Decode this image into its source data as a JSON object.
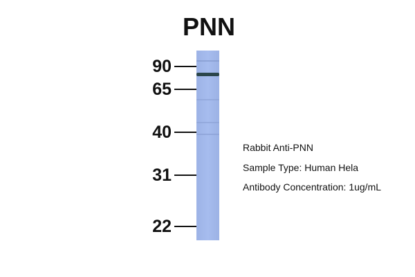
{
  "title": "PNN",
  "markers": [
    {
      "label": "90"
    },
    {
      "label": "65"
    },
    {
      "label": "40"
    },
    {
      "label": "31"
    },
    {
      "label": "22"
    }
  ],
  "lane_color": "#a3b9eb",
  "band_color": "#1e3a3a",
  "captions": {
    "antibody": "Rabbit Anti-PNN",
    "sample": "Sample Type: Human Hela",
    "concentration": "Antibody Concentration: 1ug/mL"
  }
}
